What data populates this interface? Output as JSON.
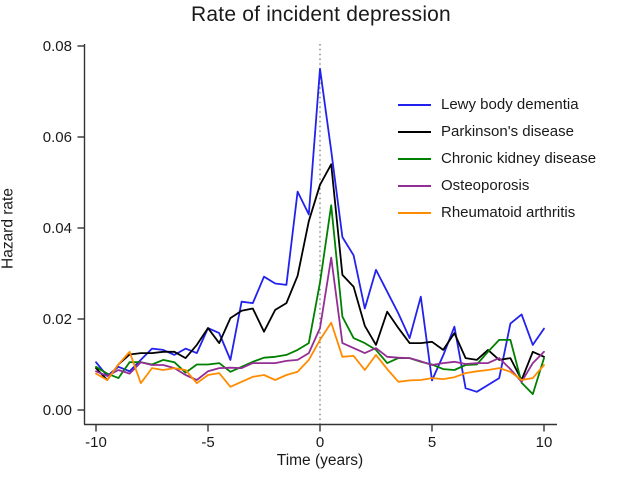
{
  "title": "Rate of incident depression",
  "axis_color": "#333333",
  "text_color": "#1a1a1a",
  "reference_line_color": "#666666",
  "chart_data": {
    "type": "line",
    "title": "Rate of incident depression",
    "xlabel": "Time (years)",
    "ylabel": "Hazard rate",
    "xlim": [
      -10.6,
      10.6
    ],
    "ylim": [
      0,
      0.08
    ],
    "xticks": [
      -10,
      -5,
      0,
      5,
      10
    ],
    "yticks": [
      0.0,
      0.02,
      0.04,
      0.06,
      0.08
    ],
    "grid": false,
    "legend_position": "inside upper right",
    "reference_line": {
      "x": 0,
      "style": "dotted"
    },
    "x": [
      -10,
      -9.5,
      -9,
      -8.5,
      -8,
      -7.5,
      -7,
      -6.5,
      -6,
      -5.5,
      -5,
      -4.5,
      -4,
      -3.5,
      -3,
      -2.5,
      -2,
      -1.5,
      -1,
      -0.5,
      0,
      0.5,
      1,
      1.5,
      2,
      2.5,
      3,
      3.5,
      4,
      4.5,
      5,
      5.5,
      6,
      6.5,
      7,
      7.5,
      8,
      8.5,
      9,
      9.5,
      10
    ],
    "series": [
      {
        "name": "Lewy body dementia",
        "color": "#2222ee",
        "values": [
          0.0105,
          0.0075,
          0.0095,
          0.0085,
          0.011,
          0.0135,
          0.0132,
          0.0121,
          0.0135,
          0.0125,
          0.018,
          0.0169,
          0.011,
          0.0238,
          0.0235,
          0.0293,
          0.0278,
          0.0275,
          0.048,
          0.043,
          0.075,
          0.057,
          0.038,
          0.034,
          0.0223,
          0.0308,
          0.026,
          0.0212,
          0.0158,
          0.0249,
          0.0065,
          0.012,
          0.0183,
          0.0048,
          0.004,
          0.0055,
          0.007,
          0.019,
          0.021,
          0.0143,
          0.0179
        ]
      },
      {
        "name": "Parkinson's disease",
        "color": "#000000",
        "values": [
          0.0092,
          0.0066,
          0.01,
          0.0122,
          0.0125,
          0.0125,
          0.0128,
          0.0128,
          0.0114,
          0.0143,
          0.018,
          0.0147,
          0.0202,
          0.0218,
          0.0223,
          0.0172,
          0.022,
          0.0235,
          0.0295,
          0.0415,
          0.0495,
          0.054,
          0.0297,
          0.0271,
          0.0185,
          0.0143,
          0.0216,
          0.018,
          0.0147,
          0.0147,
          0.015,
          0.0132,
          0.0169,
          0.0114,
          0.011,
          0.0132,
          0.011,
          0.0114,
          0.0066,
          0.0128,
          0.0117
        ]
      },
      {
        "name": "Chronic kidney disease",
        "color": "#008000",
        "values": [
          0.0095,
          0.008,
          0.007,
          0.0105,
          0.0105,
          0.01,
          0.011,
          0.0105,
          0.0082,
          0.01,
          0.01,
          0.0103,
          0.0084,
          0.0095,
          0.0106,
          0.0115,
          0.0117,
          0.0121,
          0.0132,
          0.0147,
          0.028,
          0.045,
          0.0205,
          0.0158,
          0.0147,
          0.0132,
          0.0103,
          0.0114,
          0.0114,
          0.0106,
          0.01,
          0.009,
          0.0088,
          0.0099,
          0.01,
          0.0128,
          0.0154,
          0.0154,
          0.006,
          0.0035,
          0.0114
        ]
      },
      {
        "name": "Osteoporosis",
        "color": "#942d94",
        "values": [
          0.0085,
          0.0075,
          0.0088,
          0.008,
          0.0105,
          0.0099,
          0.0099,
          0.0092,
          0.0077,
          0.0066,
          0.0085,
          0.0092,
          0.0093,
          0.0092,
          0.0103,
          0.0103,
          0.0103,
          0.0108,
          0.011,
          0.0125,
          0.018,
          0.0335,
          0.0147,
          0.0136,
          0.0125,
          0.0136,
          0.0117,
          0.0115,
          0.0114,
          0.0107,
          0.0099,
          0.0103,
          0.0106,
          0.0101,
          0.0103,
          0.0103,
          0.0114,
          0.009,
          0.0062,
          0.0103,
          0.0128
        ]
      },
      {
        "name": "Rheumatoid arthritis",
        "color": "#ff8c00",
        "values": [
          0.008,
          0.0066,
          0.01,
          0.0128,
          0.0059,
          0.0092,
          0.0088,
          0.0092,
          0.0088,
          0.0059,
          0.0077,
          0.0081,
          0.0051,
          0.0062,
          0.0073,
          0.0077,
          0.0066,
          0.0077,
          0.0084,
          0.011,
          0.0154,
          0.0192,
          0.0117,
          0.0119,
          0.0088,
          0.0121,
          0.009,
          0.0062,
          0.0065,
          0.0066,
          0.007,
          0.0068,
          0.0072,
          0.0081,
          0.0085,
          0.0088,
          0.0092,
          0.0084,
          0.0066,
          0.007,
          0.0099
        ]
      }
    ]
  }
}
